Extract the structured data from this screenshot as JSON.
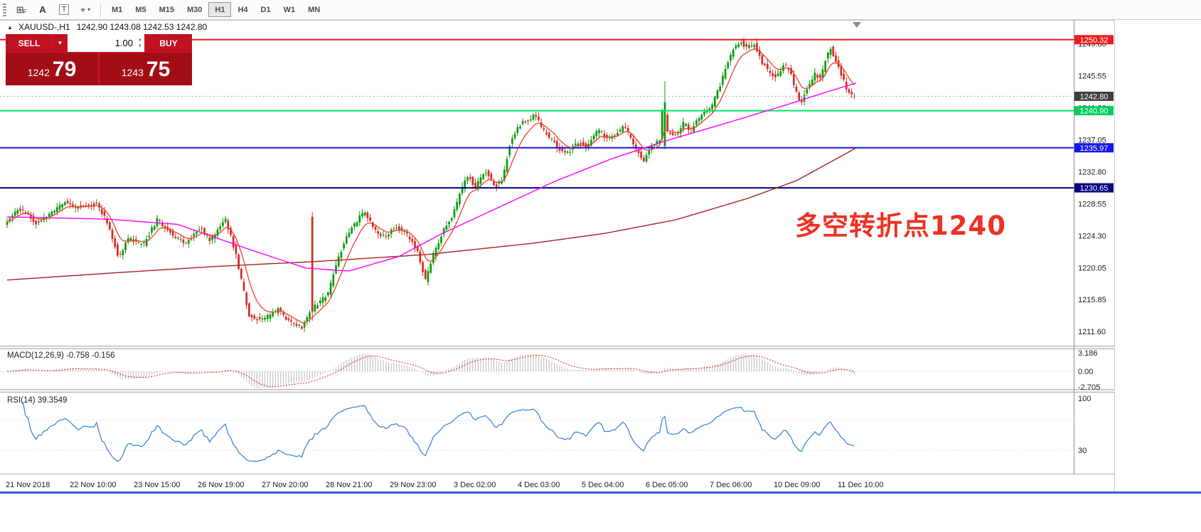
{
  "window": {
    "borders": {
      "frame": "#c6c6c6",
      "axis_line": "#909090",
      "bottom_strip": "#3b5bd6"
    }
  },
  "toolbar": {
    "icons": {
      "grid": {
        "glyph": "⊞",
        "sub": "F"
      },
      "text_a": {
        "glyph": "A"
      },
      "label_t": {
        "glyph": "T"
      },
      "shapes": {
        "glyph": "⌖",
        "caret": "▾"
      }
    },
    "timeframes": [
      "M1",
      "M5",
      "M15",
      "M30",
      "H1",
      "H4",
      "D1",
      "W1",
      "MN"
    ],
    "active_timeframe": "H1"
  },
  "header": {
    "collapse_arrow": "▲",
    "symbol": "XAUUSD-,H1",
    "ohlc": "1242.90 1243.08 1242.53 1242.80"
  },
  "trade_panel": {
    "sell_label": "SELL",
    "buy_label": "BUY",
    "volume": "1.00",
    "dd_arrow": "▼",
    "spinner_up": "▲",
    "spinner_down": "▼",
    "sell_main": "1242",
    "sell_pips": "79",
    "buy_main": "1243",
    "buy_pips": "75",
    "panel_bg": "#d0182a",
    "button_bg": "#c01120",
    "cell_bg": "#a30d16"
  },
  "annotation": {
    "text": "多空转折点1240",
    "color": "#ef3124"
  },
  "chart_data": {
    "type": "candlestick",
    "symbol": "XAUUSD",
    "period": "H1",
    "current_ohlc": {
      "open": 1242.9,
      "high": 1243.08,
      "low": 1242.53,
      "close": 1242.8
    },
    "price_axis_range": [
      1209.7,
      1252.0
    ],
    "y_ticks": [
      1249.8,
      1245.55,
      1241.3,
      1237.05,
      1232.8,
      1228.55,
      1224.3,
      1220.05,
      1215.85,
      1211.6
    ],
    "x_labels": [
      "21 Nov 2018",
      "22 Nov 10:00",
      "23 Nov 15:00",
      "26 Nov 19:00",
      "27 Nov 20:00",
      "28 Nov 21:00",
      "29 Nov 23:00",
      "3 Dec 02:00",
      "4 Dec 03:00",
      "5 Dec 04:00",
      "6 Dec 05:00",
      "7 Dec 06:00",
      "10 Dec 09:00",
      "11 Dec 10:00"
    ],
    "hlines": [
      {
        "price": 1250.32,
        "label": "1250.32",
        "line": "#ee1c1c",
        "badge": "#ee1c1c",
        "style": "solid",
        "width": 2
      },
      {
        "price": 1242.8,
        "label": "1242.80",
        "line": "#aaaaaa",
        "badge": "#3f3f3f",
        "style": "dotted",
        "width": 1
      },
      {
        "price": 1240.9,
        "label": "1240.90",
        "line": "#00e06a",
        "badge": "#00ce5e",
        "style": "solid",
        "width": 2
      },
      {
        "price": 1235.97,
        "label": "1235.97",
        "line": "#1616e8",
        "badge": "#1616e8",
        "style": "solid",
        "width": 2
      },
      {
        "price": 1230.65,
        "label": "1230.65",
        "line": "#000080",
        "badge": "#000080",
        "style": "solid",
        "width": 2
      }
    ],
    "price_path": [
      [
        8,
        1225.5
      ],
      [
        30,
        1228.0
      ],
      [
        55,
        1226.0
      ],
      [
        80,
        1227.5
      ],
      [
        95,
        1228.8
      ],
      [
        110,
        1228.0
      ],
      [
        140,
        1228.6
      ],
      [
        155,
        1226.0
      ],
      [
        170,
        1221.5
      ],
      [
        185,
        1224.0
      ],
      [
        205,
        1223.0
      ],
      [
        225,
        1226.5
      ],
      [
        245,
        1224.5
      ],
      [
        265,
        1223.2
      ],
      [
        285,
        1225.5
      ],
      [
        300,
        1223.5
      ],
      [
        320,
        1226.8
      ],
      [
        335,
        1222.0
      ],
      [
        345,
        1217.5
      ],
      [
        355,
        1213.5
      ],
      [
        375,
        1213.2
      ],
      [
        395,
        1214.5
      ],
      [
        410,
        1213.0
      ],
      [
        428,
        1212.2
      ],
      [
        445,
        1214.8
      ],
      [
        465,
        1216.5
      ],
      [
        478,
        1221.0
      ],
      [
        492,
        1224.5
      ],
      [
        505,
        1226.2
      ],
      [
        516,
        1227.6
      ],
      [
        530,
        1225.0
      ],
      [
        545,
        1224.2
      ],
      [
        560,
        1225.6
      ],
      [
        575,
        1224.6
      ],
      [
        590,
        1222.5
      ],
      [
        602,
        1218.4
      ],
      [
        612,
        1221.5
      ],
      [
        625,
        1224.5
      ],
      [
        640,
        1227.0
      ],
      [
        652,
        1230.2
      ],
      [
        662,
        1232.4
      ],
      [
        672,
        1230.6
      ],
      [
        686,
        1233.0
      ],
      [
        700,
        1230.8
      ],
      [
        710,
        1231.6
      ],
      [
        720,
        1236.2
      ],
      [
        730,
        1238.6
      ],
      [
        742,
        1239.6
      ],
      [
        756,
        1240.2
      ],
      [
        770,
        1238.0
      ],
      [
        785,
        1236.4
      ],
      [
        800,
        1235.0
      ],
      [
        815,
        1236.8
      ],
      [
        830,
        1236.0
      ],
      [
        845,
        1238.4
      ],
      [
        858,
        1237.0
      ],
      [
        870,
        1237.8
      ],
      [
        882,
        1238.8
      ],
      [
        895,
        1236.4
      ],
      [
        908,
        1234.2
      ],
      [
        920,
        1236.2
      ],
      [
        932,
        1237.0
      ],
      [
        936,
        1242.5
      ],
      [
        942,
        1238.2
      ],
      [
        955,
        1237.6
      ],
      [
        965,
        1239.2
      ],
      [
        975,
        1238.2
      ],
      [
        985,
        1239.6
      ],
      [
        995,
        1240.6
      ],
      [
        1005,
        1241.6
      ],
      [
        1015,
        1244.0
      ],
      [
        1025,
        1246.6
      ],
      [
        1035,
        1249.2
      ],
      [
        1045,
        1250.0
      ],
      [
        1055,
        1249.2
      ],
      [
        1065,
        1249.8
      ],
      [
        1075,
        1247.4
      ],
      [
        1085,
        1246.0
      ],
      [
        1095,
        1245.2
      ],
      [
        1105,
        1247.0
      ],
      [
        1115,
        1246.2
      ],
      [
        1122,
        1243.6
      ],
      [
        1130,
        1241.8
      ],
      [
        1140,
        1244.2
      ],
      [
        1150,
        1245.8
      ],
      [
        1158,
        1245.0
      ],
      [
        1165,
        1248.0
      ],
      [
        1172,
        1249.2
      ],
      [
        1180,
        1247.4
      ],
      [
        1188,
        1245.4
      ],
      [
        1196,
        1243.4
      ],
      [
        1205,
        1242.8
      ]
    ],
    "outlier_candles": [
      {
        "x": 438,
        "o": 1226.8,
        "h": 1227.4,
        "l": 1213.0,
        "c": 1214.2
      },
      {
        "x": 934,
        "o": 1236.2,
        "h": 1244.8,
        "l": 1235.8,
        "c": 1242.0
      }
    ],
    "ma_mid_path": [
      [
        8,
        1226.8
      ],
      [
        150,
        1226.5
      ],
      [
        250,
        1225.8
      ],
      [
        350,
        1222.5
      ],
      [
        430,
        1220.0
      ],
      [
        490,
        1219.6
      ],
      [
        560,
        1221.5
      ],
      [
        620,
        1224.5
      ],
      [
        700,
        1228.0
      ],
      [
        780,
        1231.5
      ],
      [
        860,
        1234.5
      ],
      [
        940,
        1237.0
      ],
      [
        1020,
        1239.2
      ],
      [
        1100,
        1241.5
      ],
      [
        1160,
        1243.3
      ],
      [
        1205,
        1244.6
      ]
    ],
    "ma_slow_path": [
      [
        8,
        1218.4
      ],
      [
        150,
        1219.3
      ],
      [
        300,
        1220.2
      ],
      [
        450,
        1220.9
      ],
      [
        600,
        1221.8
      ],
      [
        750,
        1223.3
      ],
      [
        850,
        1224.6
      ],
      [
        950,
        1226.4
      ],
      [
        1050,
        1229.2
      ],
      [
        1120,
        1231.6
      ],
      [
        1205,
        1236.0
      ]
    ],
    "colors": {
      "up": "#089b08",
      "down": "#d42a20",
      "ma_fast": "#e8432b",
      "ma_mid": "#ff00ff",
      "ma_slow": "#aa2222",
      "macd_hist": "#b8b8b8",
      "macd_signal": "#d02020",
      "rsi_line": "#2f81d6",
      "axis_text": "#1c1c1c"
    },
    "indicators": {
      "macd": {
        "title": "MACD(12,26,9)",
        "values": "-0.758 -0.156",
        "axis_labels": [
          "3.186",
          "0.00",
          "-2.705"
        ],
        "axis_values": [
          3.186,
          0,
          -2.705
        ]
      },
      "rsi": {
        "title": "RSI(14)",
        "value": "39.3549",
        "axis_labels": [
          "100",
          "30"
        ],
        "axis_values": [
          100,
          30
        ],
        "levels": [
          70,
          30
        ]
      }
    }
  }
}
